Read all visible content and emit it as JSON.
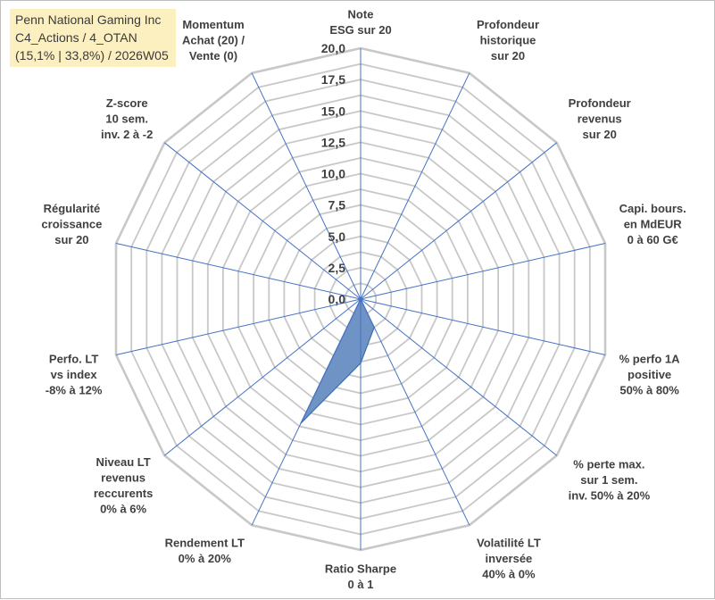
{
  "title_box": {
    "line1": "Penn National Gaming Inc",
    "line2": "C4_Actions / 4_OTAN",
    "line3": "(15,1% | 33,8%) / 2026W05"
  },
  "colors": {
    "grid": "#c8c8c8",
    "spoke": "#4472c4",
    "series_fill": "#6f93c4",
    "series_stroke": "#3f6eaa",
    "label": "#404040",
    "title_bg": "#fdf0c0"
  },
  "chart_data": {
    "type": "radar",
    "title": "Penn National Gaming Inc",
    "range": [
      0,
      20
    ],
    "ticks": [
      "0,0",
      "2,5",
      "5,0",
      "7,5",
      "10,0",
      "12,5",
      "15,0",
      "17,5",
      "20,0"
    ],
    "tick_values": [
      0,
      2.5,
      5,
      7.5,
      10,
      12.5,
      15,
      17.5,
      20
    ],
    "axes": [
      {
        "lines": [
          "Note",
          "ESG sur 20"
        ]
      },
      {
        "lines": [
          "Profondeur",
          "historique",
          "sur 20"
        ]
      },
      {
        "lines": [
          "Profondeur",
          "revenus",
          "sur 20"
        ]
      },
      {
        "lines": [
          "Capi. bours.",
          "en MdEUR",
          "0 à 60 G€"
        ]
      },
      {
        "lines": [
          "% perfo 1A",
          "positive",
          "50% à 80%"
        ]
      },
      {
        "lines": [
          "% perte max.",
          "sur 1 sem.",
          "inv. 50% à 20%"
        ]
      },
      {
        "lines": [
          "Volatilité LT",
          "inversée",
          "40% à 0%"
        ]
      },
      {
        "lines": [
          "Ratio Sharpe",
          "0 à 1"
        ]
      },
      {
        "lines": [
          "Rendement LT",
          "0% à 20%"
        ]
      },
      {
        "lines": [
          "Niveau LT",
          "revenus",
          "reccurents",
          "0% à 6%"
        ]
      },
      {
        "lines": [
          "Perfo. LT",
          "vs index",
          "-8% à 12%"
        ]
      },
      {
        "lines": [
          "Régularité",
          "croissance",
          "sur 20"
        ]
      },
      {
        "lines": [
          "Z-score",
          "10 sem.",
          "inv. 2 à -2"
        ]
      },
      {
        "lines": [
          "Momentum",
          "Achat (20) /",
          "Vente (0)"
        ]
      }
    ],
    "series": [
      {
        "name": "Penn National Gaming Inc",
        "values": [
          0,
          0,
          0,
          0,
          0,
          0,
          2.5,
          5.1,
          11.0,
          0,
          0,
          0,
          0,
          0
        ]
      }
    ]
  }
}
